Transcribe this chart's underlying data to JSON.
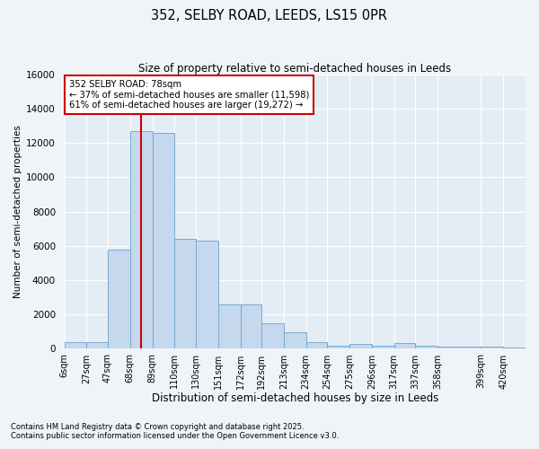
{
  "title_line1": "352, SELBY ROAD, LEEDS, LS15 0PR",
  "title_line2": "Size of property relative to semi-detached houses in Leeds",
  "xlabel": "Distribution of semi-detached houses by size in Leeds",
  "ylabel": "Number of semi-detached properties",
  "annotation_title": "352 SELBY ROAD: 78sqm",
  "annotation_line2": "← 37% of semi-detached houses are smaller (11,598)",
  "annotation_line3": "61% of semi-detached houses are larger (19,272) →",
  "footnote1": "Contains HM Land Registry data © Crown copyright and database right 2025.",
  "footnote2": "Contains public sector information licensed under the Open Government Licence v3.0.",
  "bin_labels": [
    "6sqm",
    "27sqm",
    "47sqm",
    "68sqm",
    "89sqm",
    "110sqm",
    "130sqm",
    "151sqm",
    "172sqm",
    "192sqm",
    "213sqm",
    "234sqm",
    "254sqm",
    "275sqm",
    "296sqm",
    "317sqm",
    "337sqm",
    "358sqm",
    "399sqm",
    "420sqm"
  ],
  "bin_edges": [
    6,
    27,
    47,
    68,
    89,
    110,
    130,
    151,
    172,
    192,
    213,
    234,
    254,
    275,
    296,
    317,
    337,
    358,
    399,
    420
  ],
  "bar_values": [
    400,
    400,
    5800,
    12700,
    12600,
    6400,
    6300,
    2600,
    2600,
    1500,
    950,
    380,
    200,
    300,
    200,
    350,
    200,
    150,
    120,
    100
  ],
  "bar_color": "#c5d8ee",
  "bar_edgecolor": "#7aaad0",
  "redline_x": 78,
  "ylim": [
    0,
    16000
  ],
  "yticks": [
    0,
    2000,
    4000,
    6000,
    8000,
    10000,
    12000,
    14000,
    16000
  ],
  "background_color": "#f0f4f8",
  "plot_background": "#e4edf5",
  "grid_color": "#ffffff",
  "annotation_box_color": "#ffffff",
  "annotation_box_edgecolor": "#cc0000",
  "redline_color": "#cc0000",
  "figwidth": 6.0,
  "figheight": 5.0,
  "dpi": 100
}
